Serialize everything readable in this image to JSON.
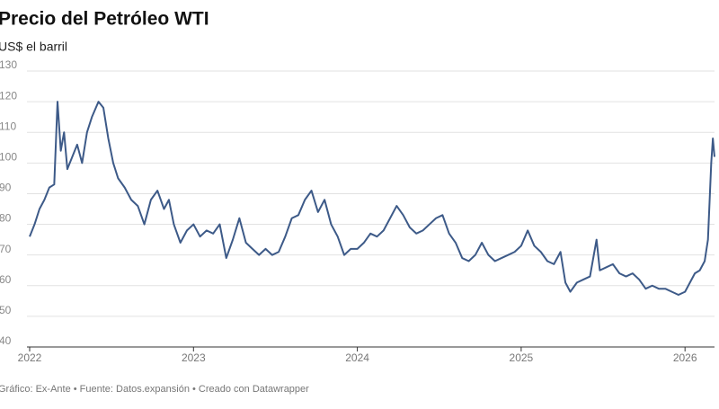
{
  "chart_data": {
    "type": "line",
    "title": "Precio del Petróleo WTI",
    "subtitle": "US$ el barril",
    "footer": "Gráfico: Ex-Ante • Fuente: Datos.expansión • Creado con Datawrapper",
    "x": [
      2022.0,
      2022.03,
      2022.06,
      2022.09,
      2022.12,
      2022.15,
      2022.17,
      2022.19,
      2022.21,
      2022.23,
      2022.26,
      2022.29,
      2022.32,
      2022.35,
      2022.38,
      2022.42,
      2022.45,
      2022.48,
      2022.51,
      2022.54,
      2022.58,
      2022.62,
      2022.66,
      2022.7,
      2022.74,
      2022.78,
      2022.82,
      2022.85,
      2022.88,
      2022.92,
      2022.96,
      2023.0,
      2023.04,
      2023.08,
      2023.12,
      2023.16,
      2023.2,
      2023.24,
      2023.28,
      2023.32,
      2023.36,
      2023.4,
      2023.44,
      2023.48,
      2023.52,
      2023.56,
      2023.6,
      2023.64,
      2023.68,
      2023.72,
      2023.76,
      2023.8,
      2023.84,
      2023.88,
      2023.92,
      2023.96,
      2024.0,
      2024.04,
      2024.08,
      2024.12,
      2024.16,
      2024.2,
      2024.24,
      2024.28,
      2024.32,
      2024.36,
      2024.4,
      2024.44,
      2024.48,
      2024.52,
      2024.56,
      2024.6,
      2024.64,
      2024.68,
      2024.72,
      2024.76,
      2024.8,
      2024.84,
      2024.88,
      2024.92,
      2024.96,
      2025.0,
      2025.04,
      2025.08,
      2025.12,
      2025.16,
      2025.2,
      2025.24,
      2025.27,
      2025.3,
      2025.34,
      2025.38,
      2025.42,
      2025.46,
      2025.48,
      2025.52,
      2025.56,
      2025.6,
      2025.64,
      2025.68,
      2025.72,
      2025.76,
      2025.8,
      2025.84,
      2025.88,
      2025.92,
      2025.96,
      2026.0,
      2026.03,
      2026.06,
      2026.09,
      2026.12,
      2026.14,
      2026.16,
      2026.17,
      2026.18
    ],
    "series": [
      {
        "color": "#3d5a88",
        "values": [
          76,
          80,
          85,
          88,
          92,
          93,
          120,
          104,
          110,
          98,
          102,
          106,
          100,
          110,
          115,
          120,
          118,
          108,
          100,
          95,
          92,
          88,
          86,
          80,
          88,
          91,
          85,
          88,
          80,
          74,
          78,
          80,
          76,
          78,
          77,
          80,
          69,
          75,
          82,
          74,
          72,
          70,
          72,
          70,
          71,
          76,
          82,
          83,
          88,
          91,
          84,
          88,
          80,
          76,
          70,
          72,
          72,
          74,
          77,
          76,
          78,
          82,
          86,
          83,
          79,
          77,
          78,
          80,
          82,
          83,
          77,
          74,
          69,
          68,
          70,
          74,
          70,
          68,
          69,
          70,
          71,
          73,
          78,
          73,
          71,
          68,
          67,
          71,
          61,
          58,
          61,
          62,
          63,
          75,
          65,
          66,
          67,
          64,
          63,
          64,
          62,
          59,
          60,
          59,
          59,
          58,
          57,
          58,
          61,
          64,
          65,
          68,
          75,
          100,
          108,
          102
        ]
      }
    ],
    "xlim": [
      2022,
      2026.18
    ],
    "xticks": [
      2022,
      2023,
      2024,
      2025,
      2026
    ],
    "ylim": [
      40,
      130
    ],
    "yticks": [
      40,
      50,
      60,
      70,
      80,
      90,
      100,
      110,
      120,
      130
    ],
    "grid": true
  }
}
